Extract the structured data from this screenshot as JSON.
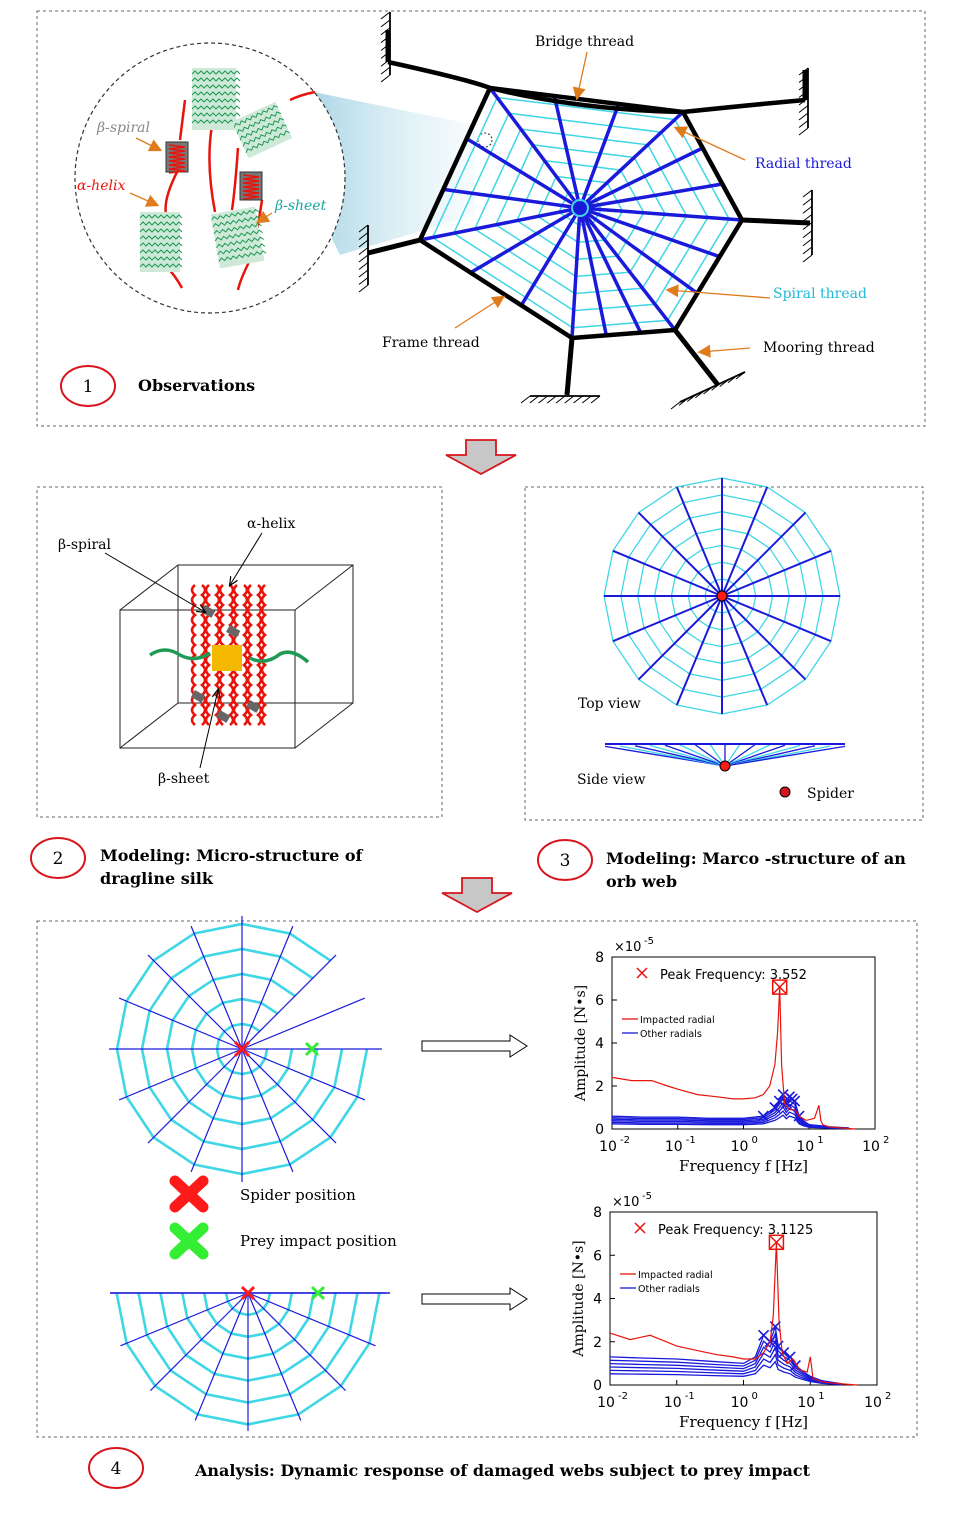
{
  "panel1": {
    "labels": {
      "bridge": "Bridge thread",
      "radial": "Radial thread",
      "spiral": "Spiral thread",
      "frame": "Frame thread",
      "mooring": "Mooring thread",
      "beta_spiral": "β-spiral",
      "alpha_helix": "α-helix",
      "beta_sheet": "β-sheet"
    },
    "step_number": "1",
    "step_title": "Observations"
  },
  "panel2": {
    "labels": {
      "alpha_helix": "α-helix",
      "beta_spiral": "β-spiral",
      "beta_sheet": "β-sheet"
    },
    "step_number": "2",
    "step_title_line1": "Modeling: Micro-structure of",
    "step_title_line2": "dragline silk"
  },
  "panel3": {
    "labels": {
      "top_view": "Top view",
      "side_view": "Side view",
      "spider": "Spider"
    },
    "step_number": "3",
    "step_title_line1": "Modeling: Marco -structure of an",
    "step_title_line2": "orb web"
  },
  "panel4": {
    "legend": {
      "spider_position": "Spider position",
      "prey_impact_position": "Prey impact position"
    },
    "step_number": "4",
    "step_title": "Analysis: Dynamic response of damaged webs subject to prey impact"
  },
  "colors": {
    "radial": "#1a1adb",
    "spiral": "#3fd6e6",
    "frame": "#000000",
    "helix": "#e8140c",
    "sheet": "#1f9a55",
    "arrow": "#e07b1c",
    "big_arrow_outline": "#d8141c",
    "big_arrow_fill": "#c7c7c7",
    "spider_marker": "#ff1a1a",
    "prey_marker": "#33ee33"
  },
  "chart_data": [
    {
      "type": "line",
      "title": "Peak Frequency: 3.552",
      "xlabel": "Frequency  f [Hz]",
      "ylabel": "Amplitude  [N•s]",
      "y_exponent": "×10",
      "y_exponent_power": "-5",
      "x_scale": "log",
      "xlim": [
        0.01,
        100
      ],
      "ylim": [
        0,
        8
      ],
      "x_ticks": [
        "10",
        "10",
        "10",
        "10",
        "10"
      ],
      "x_tick_powers": [
        "-2",
        "-1",
        "0",
        "1",
        "2"
      ],
      "y_ticks": [
        "0",
        "2",
        "4",
        "6",
        "8"
      ],
      "legend": [
        "Impacted radial",
        "Other radials"
      ],
      "peak": {
        "x": 3.552,
        "y": 6.6
      },
      "series": [
        {
          "name": "Impacted radial",
          "x": [
            0.01,
            0.02,
            0.04,
            0.07,
            0.1,
            0.2,
            0.4,
            0.7,
            1.0,
            1.5,
            2.0,
            2.5,
            3.0,
            3.3,
            3.552,
            3.8,
            4.2,
            5.0,
            6.0,
            7.0,
            9.0,
            12.0,
            14.0,
            15.0,
            16.0,
            20.0,
            30.0,
            50.0
          ],
          "y": [
            2.4,
            2.25,
            2.25,
            2.0,
            1.85,
            1.6,
            1.5,
            1.4,
            1.4,
            1.45,
            1.6,
            2.0,
            3.0,
            4.5,
            6.6,
            3.0,
            1.2,
            0.9,
            0.9,
            0.6,
            0.4,
            0.5,
            1.1,
            0.4,
            0.2,
            0.1,
            0.05,
            0.0
          ]
        },
        {
          "name": "Other radials",
          "x": [
            0.01,
            0.03,
            0.1,
            0.3,
            1.0,
            2.0,
            3.0,
            3.5,
            4.0,
            4.5,
            5.0,
            5.5,
            6.0,
            7.0,
            8.0,
            10.0,
            15.0,
            20.0,
            40.0
          ],
          "y": [
            0.6,
            0.55,
            0.55,
            0.5,
            0.5,
            0.6,
            1.0,
            1.3,
            1.6,
            1.2,
            1.5,
            1.4,
            1.3,
            0.6,
            0.4,
            0.2,
            0.15,
            0.1,
            0.05
          ]
        }
      ]
    },
    {
      "type": "line",
      "title": "Peak Frequency: 3.1125",
      "xlabel": "Frequency  f [Hz]",
      "ylabel": "Amplitude  [N•s]",
      "y_exponent": "×10",
      "y_exponent_power": "-5",
      "x_scale": "log",
      "xlim": [
        0.01,
        100
      ],
      "ylim": [
        0,
        8
      ],
      "x_ticks": [
        "10",
        "10",
        "10",
        "10",
        "10"
      ],
      "x_tick_powers": [
        "-2",
        "-1",
        "0",
        "1",
        "2"
      ],
      "y_ticks": [
        "0",
        "2",
        "4",
        "6",
        "8"
      ],
      "legend": [
        "Impacted radial",
        "Other radials"
      ],
      "peak": {
        "x": 3.1125,
        "y": 6.6
      },
      "series": [
        {
          "name": "Impacted radial",
          "x": [
            0.01,
            0.02,
            0.04,
            0.07,
            0.1,
            0.2,
            0.4,
            0.7,
            1.0,
            1.5,
            2.0,
            2.5,
            2.8,
            3.1125,
            3.4,
            3.8,
            4.5,
            5.5,
            7.0,
            9.0,
            10.0,
            11.0,
            15.0,
            30.0,
            50.0
          ],
          "y": [
            2.4,
            2.1,
            2.3,
            2.0,
            1.8,
            1.6,
            1.4,
            1.3,
            1.2,
            1.2,
            1.5,
            2.0,
            3.2,
            6.6,
            3.0,
            1.5,
            1.0,
            1.2,
            0.7,
            0.6,
            1.3,
            0.3,
            0.15,
            0.05,
            0.0
          ]
        },
        {
          "name": "Other radials",
          "x": [
            0.01,
            0.03,
            0.1,
            0.3,
            1.0,
            1.5,
            2.0,
            2.5,
            3.0,
            3.3,
            4.0,
            5.0,
            6.0,
            8.0,
            10.0,
            15.0,
            30.0
          ],
          "y": [
            1.3,
            1.25,
            1.2,
            1.1,
            1.0,
            1.3,
            2.3,
            2.0,
            2.7,
            1.8,
            1.5,
            1.3,
            0.9,
            0.6,
            0.4,
            0.2,
            0.05
          ]
        }
      ]
    }
  ]
}
